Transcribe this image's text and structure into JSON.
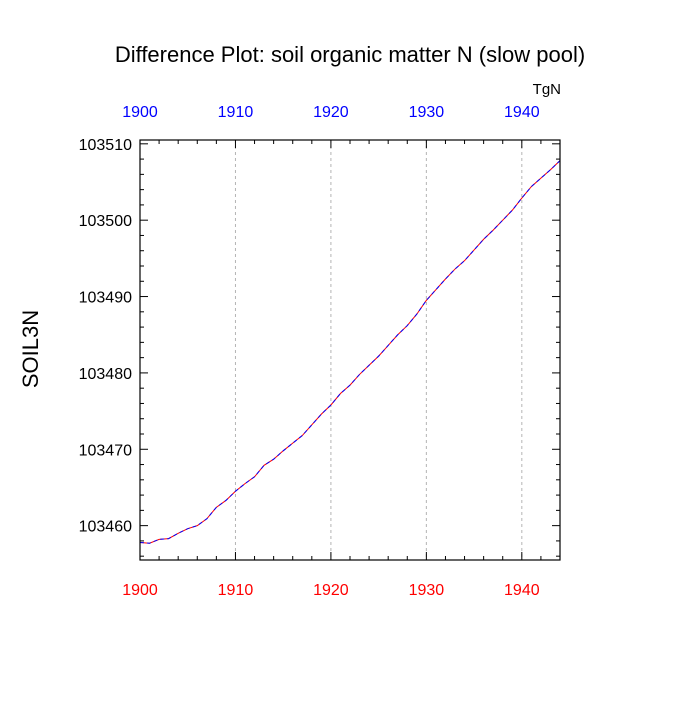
{
  "chart_data": {
    "type": "line",
    "title": "Difference Plot: soil organic matter N (slow pool)",
    "ylabel": "SOIL3N",
    "units": "TgN",
    "xlim": [
      1900,
      1944
    ],
    "ylim": [
      103455.5,
      103510.5
    ],
    "x_ticks": [
      "1900",
      "1910",
      "1920",
      "1930",
      "1940"
    ],
    "y_ticks": [
      "103460",
      "103470",
      "103480",
      "103490",
      "103500",
      "103510"
    ],
    "grid": "vertical dashed at major x ticks",
    "series": [
      {
        "line_color": "#ff0000",
        "line_style": "solid",
        "values": [
          103457.8,
          103457.7,
          103458.2,
          103458.3,
          103459.0,
          103459.6,
          103460.0,
          103460.9,
          103462.4,
          103463.3,
          103464.5,
          103465.5,
          103466.4,
          103467.9,
          103468.7,
          103469.8,
          103470.8,
          103471.8,
          103473.2,
          103474.6,
          103475.8,
          103477.3,
          103478.4,
          103479.8,
          103481.0,
          103482.2,
          103483.6,
          103485.0,
          103486.2,
          103487.7,
          103489.5,
          103490.9,
          103492.3,
          103493.6,
          103494.7,
          103496.1,
          103497.5,
          103498.7,
          103500.0,
          103501.3,
          103502.9,
          103504.4,
          103505.5,
          103506.6,
          103507.8
        ]
      },
      {
        "line_color": "#0000ff",
        "line_style": "dashed",
        "values": [
          103457.8,
          103457.7,
          103458.2,
          103458.3,
          103459.0,
          103459.6,
          103460.0,
          103460.9,
          103462.4,
          103463.3,
          103464.5,
          103465.5,
          103466.4,
          103467.9,
          103468.7,
          103469.8,
          103470.8,
          103471.8,
          103473.2,
          103474.6,
          103475.8,
          103477.3,
          103478.4,
          103479.8,
          103481.0,
          103482.2,
          103483.6,
          103485.0,
          103486.2,
          103487.7,
          103489.5,
          103490.9,
          103492.3,
          103493.6,
          103494.7,
          103496.1,
          103497.5,
          103498.7,
          103500.0,
          103501.3,
          103502.9,
          103504.4,
          103505.5,
          103506.6,
          103507.8
        ]
      }
    ],
    "x": [
      1900,
      1901,
      1902,
      1903,
      1904,
      1905,
      1906,
      1907,
      1908,
      1909,
      1910,
      1911,
      1912,
      1913,
      1914,
      1915,
      1916,
      1917,
      1918,
      1919,
      1920,
      1921,
      1922,
      1923,
      1924,
      1925,
      1926,
      1927,
      1928,
      1929,
      1930,
      1931,
      1932,
      1933,
      1934,
      1935,
      1936,
      1937,
      1938,
      1939,
      1940,
      1941,
      1942,
      1943,
      1944
    ],
    "top_axis_color": "#0000ff",
    "bottom_axis_color": "#ff0000"
  }
}
